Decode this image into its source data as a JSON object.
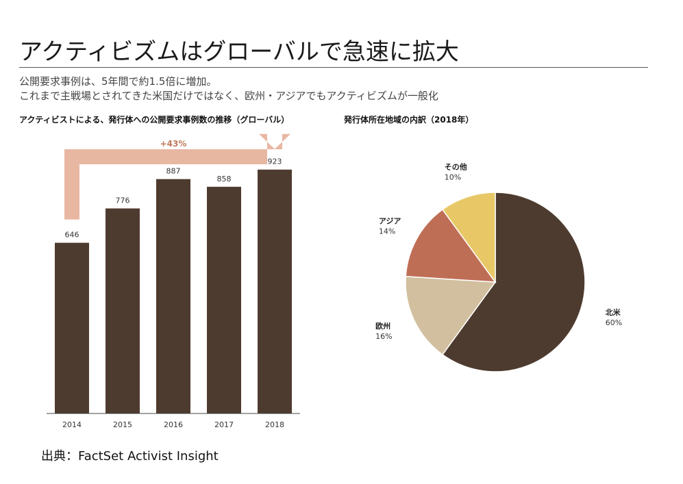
{
  "header": {
    "title": "アクティビズムはグローバルで急速に拡大",
    "subtitle_line1": "公開要求事例は、5年間で約1.5倍に増加。",
    "subtitle_line2": "これまで主戦場とされてきた米国だけではなく、欧州・アジアでもアクティビズムが一般化"
  },
  "chart_data": [
    {
      "type": "bar",
      "title": "アクティビストによる、発行体への公開要求事例数の推移（グローバル）",
      "categories": [
        "2014",
        "2015",
        "2016",
        "2017",
        "2018"
      ],
      "values": [
        646,
        776,
        887,
        858,
        923
      ],
      "ylim": [
        0,
        1000
      ],
      "annotation": "+43%",
      "colors": {
        "bar": "#4e3b2f",
        "arrow": "#e8b7a2",
        "annotation": "#c07a5e"
      },
      "grid": false
    },
    {
      "type": "pie",
      "title": "発行体所在地域の内訳（2018年）",
      "slices": [
        {
          "label": "北米",
          "value": 60,
          "value_label": "60%",
          "color": "#4e3b2f"
        },
        {
          "label": "欧州",
          "value": 16,
          "value_label": "16%",
          "color": "#d1bf9f"
        },
        {
          "label": "アジア",
          "value": 14,
          "value_label": "14%",
          "color": "#bf6e56"
        },
        {
          "label": "その他",
          "value": 10,
          "value_label": "10%",
          "color": "#e8c866"
        }
      ]
    }
  ],
  "footer": {
    "source": "出典：FactSet Activist Insight"
  }
}
